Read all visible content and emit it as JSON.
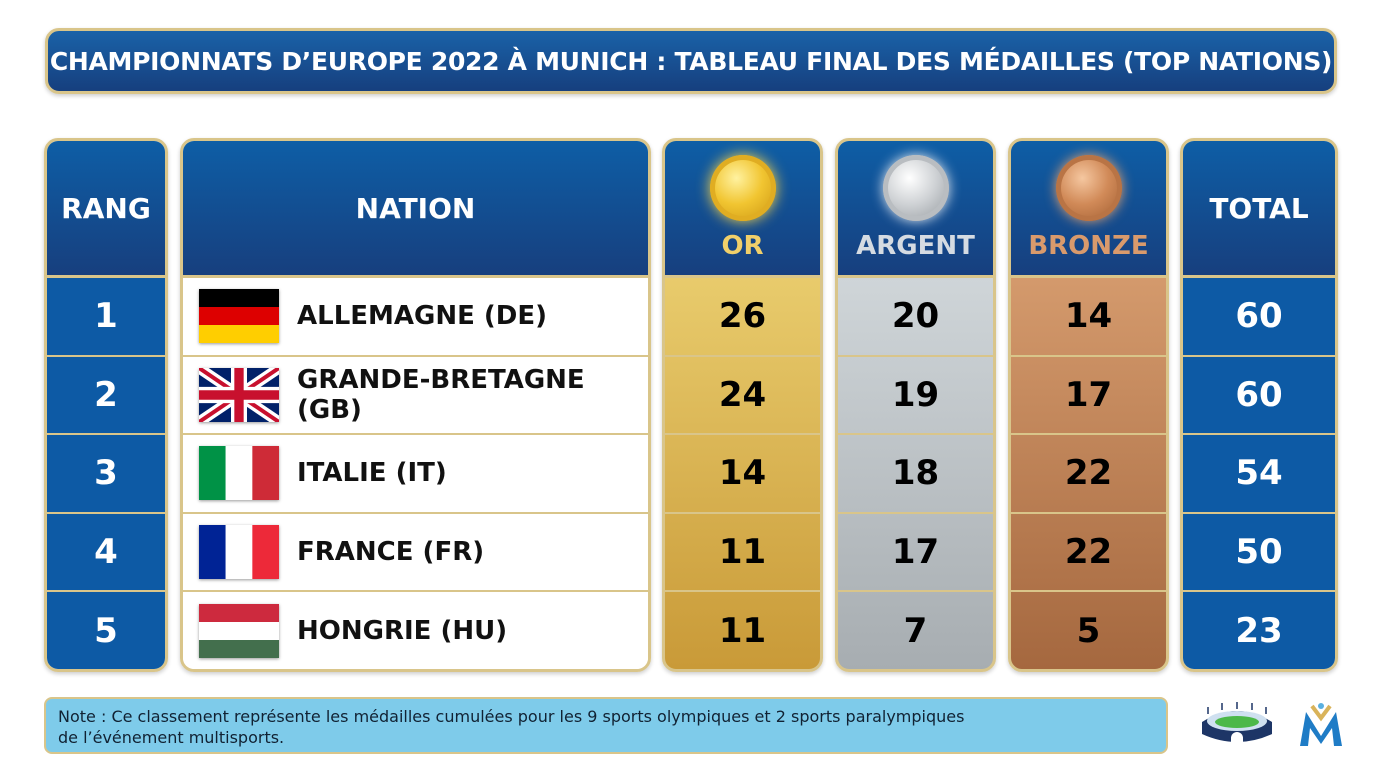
{
  "title": "CHAMPIONNATS D’EUROPE 2022 À MUNICH : TABLEAU FINAL DES MÉDAILLES (TOP NATIONS)",
  "headers": {
    "rank": "RANG",
    "nation": "NATION",
    "gold": "OR",
    "silver": "ARGENT",
    "bronze": "BRONZE",
    "total": "TOTAL"
  },
  "colors": {
    "header_blue": "#0e5ea6",
    "border_gold": "#d9c58a",
    "gold_label": "#f0cf6a",
    "silver_label": "#d5dbe2",
    "bronze_label": "#d99a6c"
  },
  "rows": [
    {
      "rank": "1",
      "nation": "ALLEMAGNE (DE)",
      "flag": "de",
      "gold": "26",
      "silver": "20",
      "bronze": "14",
      "total": "60"
    },
    {
      "rank": "2",
      "nation": "GRANDE-BRETAGNE (GB)",
      "flag": "gb",
      "gold": "24",
      "silver": "19",
      "bronze": "17",
      "total": "60"
    },
    {
      "rank": "3",
      "nation": "ITALIE (IT)",
      "flag": "it",
      "gold": "14",
      "silver": "18",
      "bronze": "22",
      "total": "54"
    },
    {
      "rank": "4",
      "nation": "FRANCE (FR)",
      "flag": "fr",
      "gold": "11",
      "silver": "17",
      "bronze": "22",
      "total": "50"
    },
    {
      "rank": "5",
      "nation": "HONGRIE (HU)",
      "flag": "hu",
      "gold": "11",
      "silver": "7",
      "bronze": "5",
      "total": "23"
    }
  ],
  "note": {
    "line1": "Note :  Ce classement représente les médailles cumulées pour les 9 sports olympiques et 2 sports paralympiques",
    "line2": "de l’événement multisports."
  },
  "logos": [
    "stadium-logo",
    "m-logo"
  ]
}
